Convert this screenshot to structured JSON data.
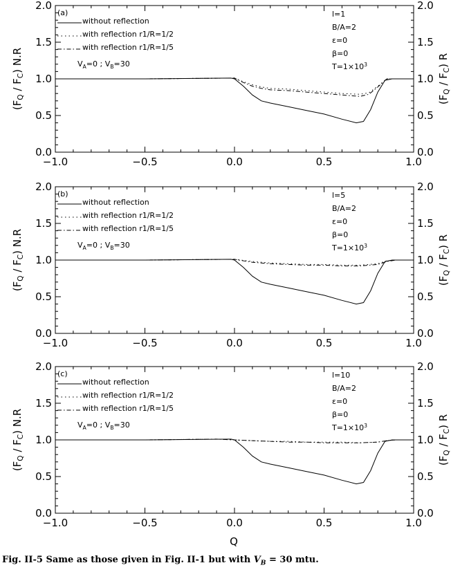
{
  "caption": "Fig. II-5 Same as those given in Fig. II-1 but with V_B = 30 mtu.",
  "xlabel": "Q",
  "chart_data": [
    {
      "type": "line",
      "panel_label": "(a)",
      "left_ylabel": "(F_Q / F_C) N.R",
      "right_ylabel": "(F_Q / F_C) R",
      "xlim": [
        -1.0,
        1.0
      ],
      "ylim": [
        0.0,
        2.0
      ],
      "xticks": [
        "-1.0",
        "-0.5",
        "0.0",
        "0.5",
        "1.0"
      ],
      "yticks": [
        "0.0",
        "0.5",
        "1.0",
        "1.5",
        "2.0"
      ],
      "legend": [
        "without reflection",
        "with reflection r1/R=1/2",
        "with reflection r1/R=1/5"
      ],
      "velocity_note": "V_A=0 ; V_B=30",
      "params": [
        "l=1",
        "B/A=2",
        "ε=0",
        "β=0",
        "T=1×10^3"
      ],
      "series": [
        {
          "name": "without reflection",
          "style": "solid",
          "x": [
            -1.0,
            -0.5,
            -0.02,
            0.0,
            0.05,
            0.1,
            0.15,
            0.2,
            0.3,
            0.4,
            0.5,
            0.6,
            0.68,
            0.72,
            0.76,
            0.8,
            0.84,
            0.88,
            1.0
          ],
          "y": [
            1.0,
            1.0,
            1.01,
            1.0,
            0.9,
            0.78,
            0.7,
            0.67,
            0.62,
            0.57,
            0.52,
            0.45,
            0.4,
            0.42,
            0.58,
            0.82,
            0.98,
            1.0,
            1.0
          ]
        },
        {
          "name": "with reflection r1/R=1/2",
          "style": "dotted",
          "x": [
            -1.0,
            -0.5,
            0.0,
            0.05,
            0.1,
            0.15,
            0.2,
            0.3,
            0.4,
            0.5,
            0.6,
            0.7,
            0.75,
            0.8,
            0.85,
            0.9,
            1.0
          ],
          "y": [
            1.0,
            1.0,
            1.01,
            0.96,
            0.92,
            0.89,
            0.87,
            0.86,
            0.84,
            0.82,
            0.8,
            0.79,
            0.81,
            0.9,
            1.0,
            1.0,
            1.0
          ]
        },
        {
          "name": "with reflection r1/R=1/5",
          "style": "dashdot",
          "x": [
            -1.0,
            -0.5,
            0.0,
            0.05,
            0.1,
            0.15,
            0.2,
            0.3,
            0.4,
            0.5,
            0.6,
            0.7,
            0.75,
            0.8,
            0.85,
            0.9,
            1.0
          ],
          "y": [
            1.0,
            1.0,
            1.01,
            0.95,
            0.9,
            0.87,
            0.85,
            0.84,
            0.82,
            0.8,
            0.78,
            0.76,
            0.79,
            0.89,
            1.0,
            1.0,
            1.0
          ]
        }
      ]
    },
    {
      "type": "line",
      "panel_label": "(b)",
      "left_ylabel": "(F_Q / F_C) N.R",
      "right_ylabel": "(F_Q / F_C) R",
      "xlim": [
        -1.0,
        1.0
      ],
      "ylim": [
        0.0,
        2.0
      ],
      "xticks": [
        "-1.0",
        "-0.5",
        "0.0",
        "0.5",
        "1.0"
      ],
      "yticks": [
        "0.0",
        "0.5",
        "1.0",
        "1.5",
        "2.0"
      ],
      "legend": [
        "without reflection",
        "with reflection r1/R=1/2",
        "with reflection r1/R=1/5"
      ],
      "velocity_note": "V_A=0 ; V_B=30",
      "params": [
        "l=5",
        "B/A=2",
        "ε=0",
        "β=0",
        "T=1×10^3"
      ],
      "series": [
        {
          "name": "without reflection",
          "style": "solid",
          "x": [
            -1.0,
            -0.5,
            -0.02,
            0.0,
            0.05,
            0.1,
            0.15,
            0.2,
            0.3,
            0.4,
            0.5,
            0.6,
            0.68,
            0.72,
            0.76,
            0.8,
            0.84,
            0.88,
            1.0
          ],
          "y": [
            1.0,
            1.0,
            1.01,
            1.0,
            0.9,
            0.78,
            0.7,
            0.67,
            0.62,
            0.57,
            0.52,
            0.45,
            0.4,
            0.42,
            0.58,
            0.82,
            0.98,
            1.0,
            1.0
          ]
        },
        {
          "name": "with reflection r1/R=1/2",
          "style": "dotted",
          "x": [
            -1.0,
            -0.5,
            0.0,
            0.1,
            0.2,
            0.3,
            0.4,
            0.5,
            0.6,
            0.7,
            0.8,
            0.85,
            0.9,
            1.0
          ],
          "y": [
            1.0,
            1.0,
            1.01,
            0.98,
            0.96,
            0.95,
            0.94,
            0.94,
            0.93,
            0.93,
            0.95,
            0.99,
            1.0,
            1.0
          ]
        },
        {
          "name": "with reflection r1/R=1/5",
          "style": "dashdot",
          "x": [
            -1.0,
            -0.5,
            0.0,
            0.1,
            0.2,
            0.3,
            0.4,
            0.5,
            0.6,
            0.7,
            0.8,
            0.85,
            0.9,
            1.0
          ],
          "y": [
            1.0,
            1.0,
            1.01,
            0.97,
            0.95,
            0.94,
            0.93,
            0.93,
            0.92,
            0.92,
            0.94,
            0.98,
            1.0,
            1.0
          ]
        }
      ]
    },
    {
      "type": "line",
      "panel_label": "(c)",
      "left_ylabel": "(F_Q / F_C) N.R",
      "right_ylabel": "(F_Q / F_C) R",
      "xlim": [
        -1.0,
        1.0
      ],
      "ylim": [
        0.0,
        2.0
      ],
      "xticks": [
        "-1.0",
        "-0.5",
        "0.0",
        "0.5",
        "1.0"
      ],
      "yticks": [
        "0.0",
        "0.5",
        "1.0",
        "1.5",
        "2.0"
      ],
      "legend": [
        "without reflection",
        "with reflection r1/R=1/2",
        "with reflection r1/R=1/5"
      ],
      "velocity_note": "V_A=0 ; V_B=30",
      "params": [
        "l=10",
        "B/A=2",
        "ε=0",
        "β=0",
        "T=1×10^3"
      ],
      "series": [
        {
          "name": "without reflection",
          "style": "solid",
          "x": [
            -1.0,
            -0.5,
            -0.02,
            0.0,
            0.05,
            0.1,
            0.15,
            0.2,
            0.3,
            0.4,
            0.5,
            0.6,
            0.68,
            0.72,
            0.76,
            0.8,
            0.84,
            0.88,
            1.0
          ],
          "y": [
            1.0,
            1.0,
            1.01,
            1.0,
            0.9,
            0.78,
            0.7,
            0.67,
            0.62,
            0.57,
            0.52,
            0.45,
            0.4,
            0.42,
            0.58,
            0.82,
            0.98,
            1.0,
            1.0
          ]
        },
        {
          "name": "with reflection r1/R=1/2",
          "style": "dotted",
          "x": [
            -1.0,
            -0.5,
            -0.1,
            0.0,
            0.1,
            0.2,
            0.3,
            0.4,
            0.5,
            0.6,
            0.7,
            0.8,
            0.85,
            0.9,
            1.0
          ],
          "y": [
            1.0,
            1.0,
            1.01,
            1.0,
            0.99,
            0.98,
            0.98,
            0.97,
            0.97,
            0.97,
            0.96,
            0.97,
            0.99,
            1.0,
            1.0
          ]
        },
        {
          "name": "with reflection r1/R=1/5",
          "style": "dashdot",
          "x": [
            -1.0,
            -0.5,
            -0.1,
            0.0,
            0.1,
            0.2,
            0.3,
            0.4,
            0.5,
            0.6,
            0.7,
            0.8,
            0.85,
            0.9,
            1.0
          ],
          "y": [
            1.0,
            1.0,
            1.01,
            1.0,
            0.99,
            0.98,
            0.97,
            0.97,
            0.96,
            0.96,
            0.96,
            0.97,
            0.99,
            1.0,
            1.0
          ]
        }
      ]
    }
  ]
}
